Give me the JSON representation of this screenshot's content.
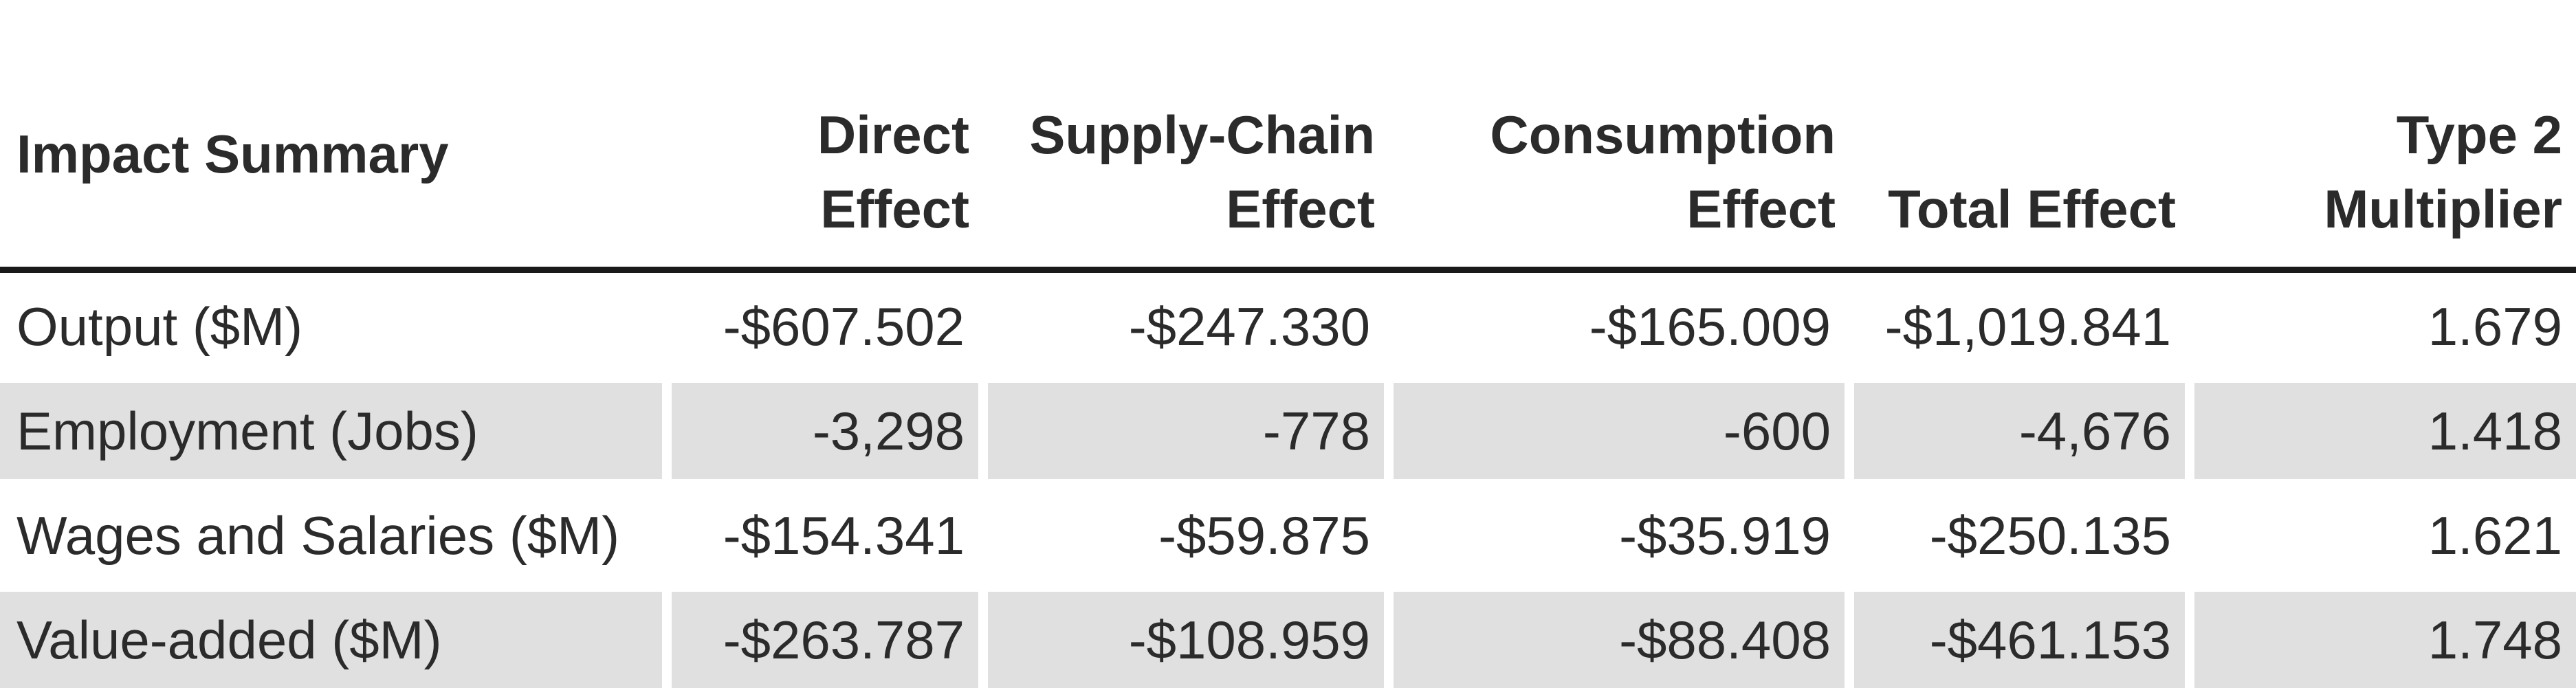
{
  "table": {
    "columns": [
      "Impact Summary",
      "Direct Effect",
      "Supply-Chain Effect",
      "Consumption Effect",
      "Total Effect",
      "Type 2 Multiplier"
    ],
    "rows": [
      {
        "label": "Output ($M)",
        "direct": "-$607.502",
        "supply_chain": "-$247.330",
        "consumption": "-$165.009",
        "total": "-$1,019.841",
        "multiplier": "1.679"
      },
      {
        "label": "Employment (Jobs)",
        "direct": "-3,298",
        "supply_chain": "-778",
        "consumption": "-600",
        "total": "-4,676",
        "multiplier": "1.418"
      },
      {
        "label": "Wages and Salaries ($M)",
        "direct": "-$154.341",
        "supply_chain": "-$59.875",
        "consumption": "-$35.919",
        "total": "-$250.135",
        "multiplier": "1.621"
      },
      {
        "label": "Value-added ($M)",
        "direct": "-$263.787",
        "supply_chain": "-$108.959",
        "consumption": "-$88.408",
        "total": "-$461.153",
        "multiplier": "1.748"
      }
    ]
  },
  "colors": {
    "shaded_row": "#e0e0e0",
    "text": "#2b2b2b",
    "header_rule": "#1a1a1a"
  }
}
